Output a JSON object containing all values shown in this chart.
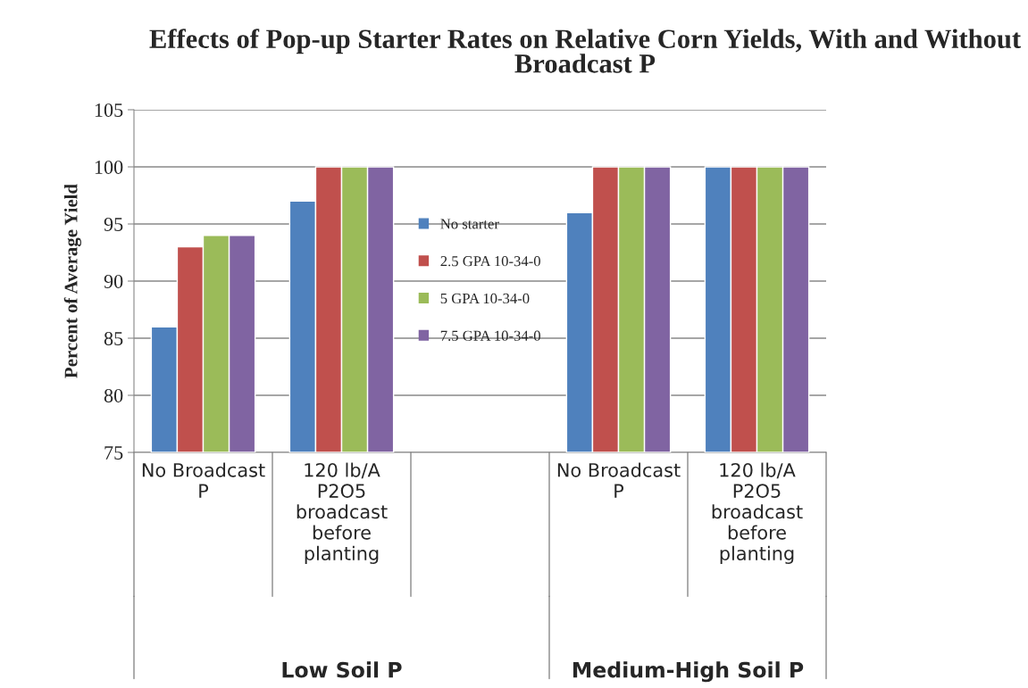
{
  "chart_data": {
    "type": "bar",
    "title": "Effects of Pop-up Starter Rates on Relative Corn Yields, With and Without Broadcast P",
    "ylabel": "Percent of Average Yield",
    "categories": [
      "No Broadcast P",
      "120 lb/A P2O5 broadcast before planting",
      null,
      "No Broadcast P",
      "120 lb/A P2O5 broadcast before planting"
    ],
    "series": [
      {
        "name": "No starter",
        "color": "#4f81bd",
        "values": [
          86,
          97,
          null,
          96,
          100
        ]
      },
      {
        "name": "2.5 GPA 10-34-0",
        "color": "#c0504d",
        "values": [
          93,
          100,
          null,
          100,
          100
        ]
      },
      {
        "name": "5 GPA 10-34-0",
        "color": "#9bbb59",
        "values": [
          94,
          100,
          null,
          100,
          100
        ]
      },
      {
        "name": "7.5 GPA 10-34-0",
        "color": "#8064a2",
        "values": [
          94,
          100,
          null,
          100,
          100
        ]
      }
    ],
    "ylim": [
      75,
      105
    ],
    "yticks": [
      75,
      80,
      85,
      90,
      95,
      100,
      105
    ],
    "grid": "y",
    "legend": "center",
    "annotations": [
      "Low Soil P",
      "Medium-High Soil P"
    ]
  }
}
